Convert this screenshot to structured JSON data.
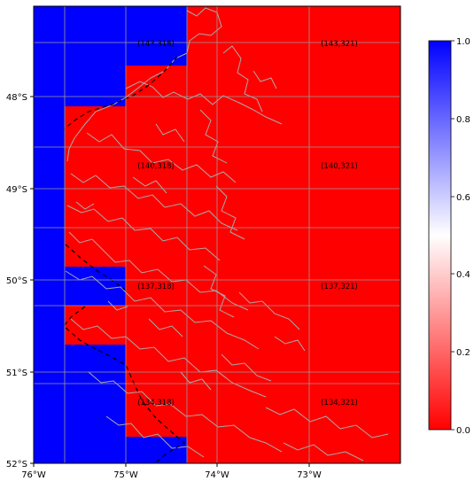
{
  "map": {
    "x_tick_labels": [
      "76°W",
      "75°W",
      "74°W",
      "73°W"
    ],
    "y_tick_labels": [
      "48°S",
      "49°S",
      "50°S",
      "51°S",
      "52°S"
    ],
    "cell_labels": {
      "a": "(143,318)",
      "b": "(143,321)",
      "c": "(140,318)",
      "d": "(140,321)",
      "e": "(137,318)",
      "f": "(137,321)",
      "g": "(134,318)",
      "h": "(134,321)"
    },
    "colors": {
      "ocean_mask": "#0000ff",
      "land_mask": "#ff0000",
      "coastline": "#aaaaaa",
      "grid": "#9a9a9a"
    }
  },
  "colorbar": {
    "tick_labels": [
      "1.0",
      "0.8",
      "0.6",
      "0.4",
      "0.2",
      "0.0"
    ],
    "colors": {
      "top": "#0000ff",
      "middle": "#ffffff",
      "bottom": "#ff0000"
    }
  }
}
